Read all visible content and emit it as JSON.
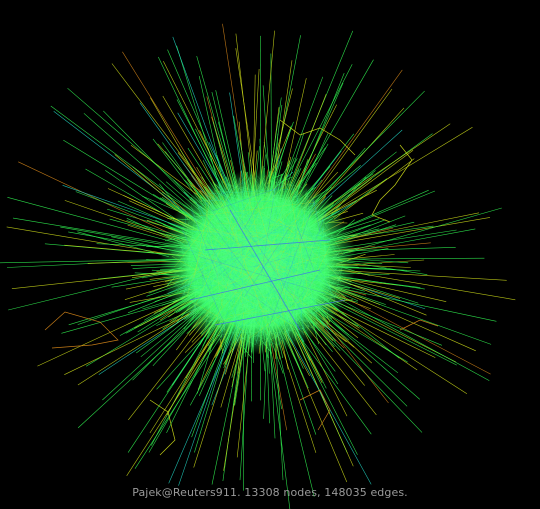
{
  "figure": {
    "background": "#000000",
    "caption": "Pajek@Reuters911. 13308 nodes, 148035 edges.",
    "caption_color": "#9a9a9a",
    "graph": {
      "name": "Pajek@Reuters911",
      "node_count": 13308,
      "edge_count": 148035,
      "layout": "force-directed hairball",
      "edge_colors": {
        "dominant": "#33ff55",
        "accent_yellow": "#d4e21a",
        "accent_cyan": "#22d9c8",
        "accent_blue": "#3a5cff",
        "accent_orange": "#d9881a",
        "accent_magenta": "#c94a9a"
      }
    }
  }
}
